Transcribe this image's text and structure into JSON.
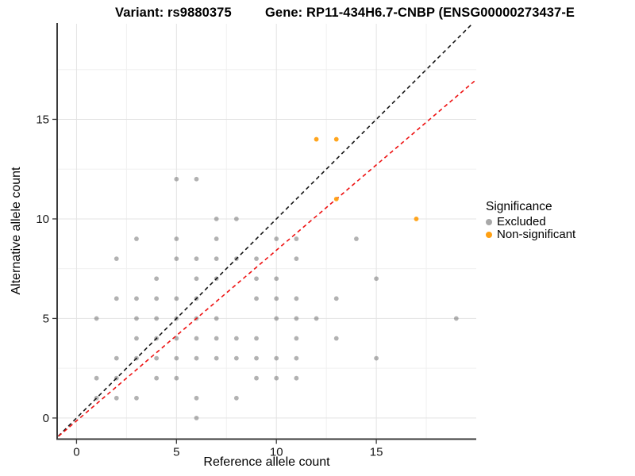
{
  "titles": {
    "left": "Variant: rs9880375",
    "right": "Gene: RP11-434H6.7-CNBP (ENSG00000273437-E"
  },
  "axes": {
    "x_label": "Reference allele count",
    "y_label": "Alternative allele count"
  },
  "legend": {
    "title": "Significance",
    "items": [
      {
        "label": "Excluded",
        "color": "#a8a8a8"
      },
      {
        "label": "Non-significant",
        "color": "#FFA012"
      }
    ]
  },
  "colors": {
    "excluded_point": "#737373",
    "non_significant_point": "#FFA012",
    "identity_line": "#141414",
    "fit_line": "#ee1111",
    "axis_line": "#3a3a3a",
    "axis_text": "#1a1a1a",
    "grid_major": "#e3e3e3",
    "grid_minor": "#f0f0f0"
  },
  "chart_data": {
    "type": "scatter",
    "title_left": "Variant: rs9880375",
    "title_right": "Gene: RP11-434H6.7-CNBP (ENSG00000273437-E",
    "xlabel": "Reference allele count",
    "ylabel": "Alternative allele count",
    "xlim": [
      -0.97,
      20.0
    ],
    "ylim": [
      -1.06,
      19.8
    ],
    "x_ticks": [
      0,
      5,
      10,
      15
    ],
    "y_ticks": [
      0,
      5,
      10,
      15
    ],
    "grid": {
      "x_major": [
        0,
        5,
        10,
        15
      ],
      "x_minor": [
        2.5,
        7.5,
        12.5,
        17.5
      ],
      "y_major": [
        0,
        5,
        10,
        15
      ],
      "y_minor": [
        2.5,
        7.5,
        12.5,
        17.5
      ]
    },
    "legend_position": "right",
    "series": [
      {
        "name": "Excluded",
        "color": "#737373",
        "opacity": 0.55,
        "points": [
          [
            6,
            0
          ],
          [
            1,
            1
          ],
          [
            2,
            1
          ],
          [
            3,
            1
          ],
          [
            6,
            1
          ],
          [
            8,
            1
          ],
          [
            1,
            2
          ],
          [
            2,
            2
          ],
          [
            4,
            2
          ],
          [
            5,
            2
          ],
          [
            9,
            2
          ],
          [
            10,
            2
          ],
          [
            11,
            2
          ],
          [
            2,
            3
          ],
          [
            3,
            3
          ],
          [
            4,
            3
          ],
          [
            5,
            3
          ],
          [
            6,
            3
          ],
          [
            7,
            3
          ],
          [
            8,
            3
          ],
          [
            9,
            3
          ],
          [
            10,
            3
          ],
          [
            11,
            3
          ],
          [
            15,
            3
          ],
          [
            3,
            4
          ],
          [
            4,
            4
          ],
          [
            5,
            4
          ],
          [
            6,
            4
          ],
          [
            7,
            4
          ],
          [
            8,
            4
          ],
          [
            9,
            4
          ],
          [
            11,
            4
          ],
          [
            13,
            4
          ],
          [
            1,
            5
          ],
          [
            3,
            5
          ],
          [
            4,
            5
          ],
          [
            5,
            5
          ],
          [
            6,
            5
          ],
          [
            7,
            5
          ],
          [
            10,
            5
          ],
          [
            11,
            5
          ],
          [
            12,
            5
          ],
          [
            19,
            5
          ],
          [
            2,
            6
          ],
          [
            3,
            6
          ],
          [
            4,
            6
          ],
          [
            5,
            6
          ],
          [
            6,
            6
          ],
          [
            9,
            6
          ],
          [
            10,
            6
          ],
          [
            11,
            6
          ],
          [
            13,
            6
          ],
          [
            4,
            7
          ],
          [
            6,
            7
          ],
          [
            7,
            7
          ],
          [
            9,
            7
          ],
          [
            10,
            7
          ],
          [
            15,
            7
          ],
          [
            2,
            8
          ],
          [
            5,
            8
          ],
          [
            6,
            8
          ],
          [
            7,
            8
          ],
          [
            8,
            8
          ],
          [
            9,
            8
          ],
          [
            11,
            8
          ],
          [
            3,
            9
          ],
          [
            5,
            9
          ],
          [
            7,
            9
          ],
          [
            10,
            9
          ],
          [
            11,
            9
          ],
          [
            14,
            9
          ],
          [
            7,
            10
          ],
          [
            8,
            10
          ],
          [
            5,
            12
          ],
          [
            6,
            12
          ]
        ]
      },
      {
        "name": "Non-significant",
        "color": "#FFA012",
        "opacity": 0.95,
        "points": [
          [
            13,
            11
          ],
          [
            12,
            14
          ],
          [
            13,
            14
          ],
          [
            17,
            10
          ]
        ]
      }
    ],
    "lines": [
      {
        "name": "identity",
        "style": "dashed",
        "color": "#141414",
        "slope": 1.0,
        "intercept": 0.0
      },
      {
        "name": "fit",
        "style": "dashed",
        "color": "#ee1111",
        "slope": 0.857,
        "intercept": -0.143
      }
    ]
  }
}
